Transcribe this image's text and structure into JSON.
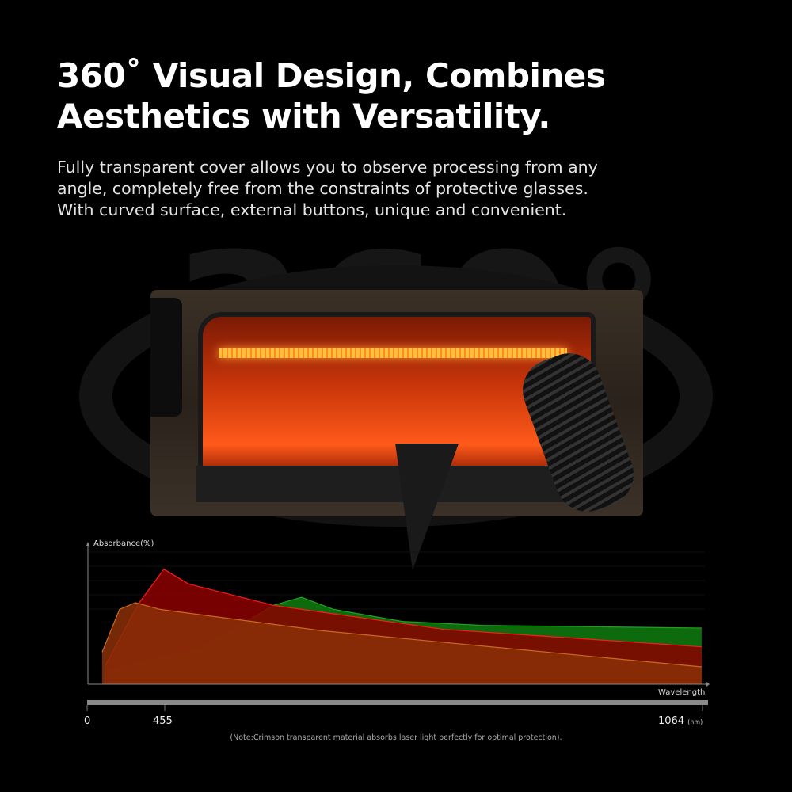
{
  "headline": {
    "line1": "360˚ Visual Design, Combines",
    "line2": "Aesthetics with Versatility."
  },
  "description": {
    "line1": "Fully transparent cover allows you to observe processing from any",
    "line2": "angle, completely free from the constraints of protective glasses.",
    "line3": "With curved surface, external buttons, unique and convenient."
  },
  "background_text": "360°",
  "chart_data": {
    "type": "area",
    "ylabel": "Absorbance(%)",
    "xlabel": "Wavelength",
    "x_unit": "(nm)",
    "x_ticks": [
      "0",
      "455",
      "1064"
    ],
    "x_tick_values": [
      0,
      455,
      1064
    ],
    "grid": true,
    "note": "(Note:Crimson transparent material absorbs laser light perfectly for optimal protection).",
    "series": [
      {
        "color": "#0d6b0d",
        "stroke": "#1fa01f",
        "points": [
          [
            121,
            9
          ],
          [
            300,
            16
          ],
          [
            495,
            26
          ],
          [
            578,
            59
          ],
          [
            610,
            65
          ],
          [
            646,
            56
          ],
          [
            724,
            47
          ],
          [
            815,
            44
          ],
          [
            1063,
            42
          ]
        ]
      },
      {
        "color": "#8c0000",
        "stroke": "#ff1a1a",
        "points": [
          [
            107,
            14
          ],
          [
            300,
            60
          ],
          [
            450,
            86
          ],
          [
            482,
            75
          ],
          [
            578,
            59
          ],
          [
            771,
            41
          ],
          [
            1063,
            28
          ]
        ]
      },
      {
        "color": "#8a3008",
        "stroke": "#c86a20",
        "points": [
          [
            88,
            24
          ],
          [
            190,
            56
          ],
          [
            283,
            61
          ],
          [
            427,
            56
          ],
          [
            633,
            40
          ],
          [
            1063,
            13
          ]
        ]
      }
    ]
  }
}
